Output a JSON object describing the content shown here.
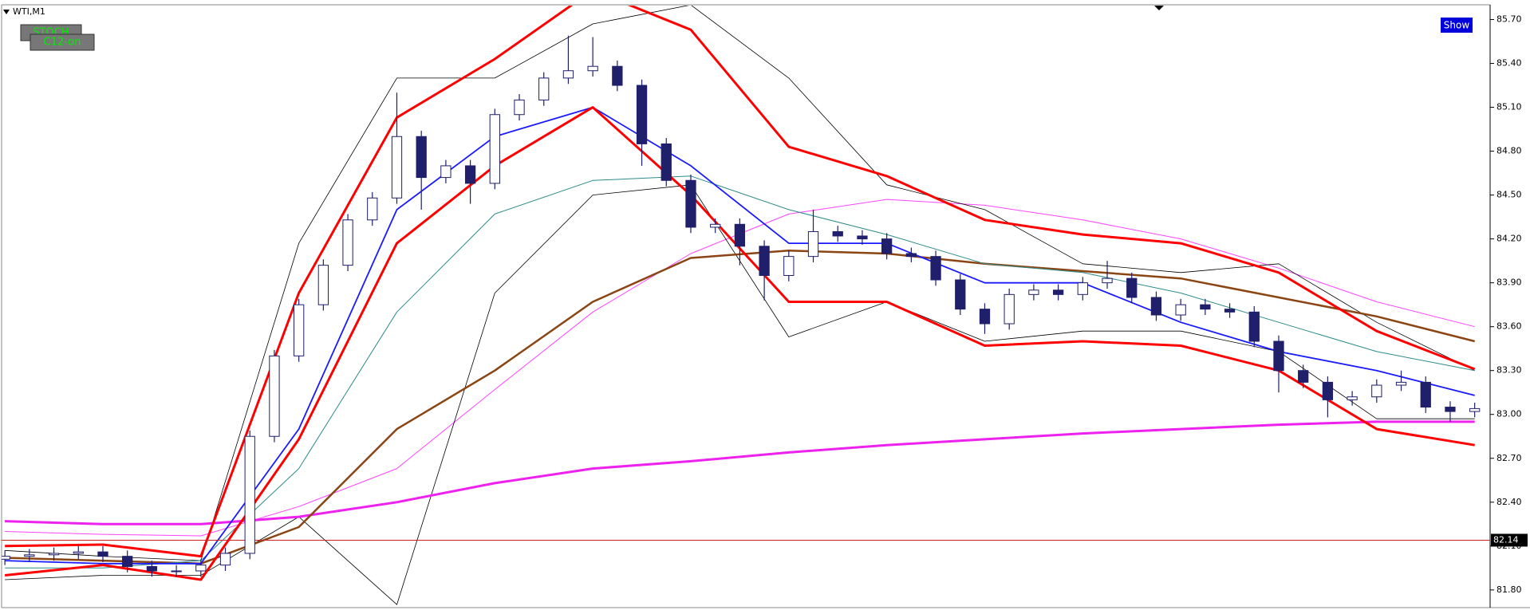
{
  "chart_data": {
    "type": "candlestick",
    "title": "WTI,M1",
    "indicator_labels": [
      "STOCH",
      "C12-on"
    ],
    "button": "Show",
    "current_price": 82.14,
    "ylim": [
      81.69,
      85.79
    ],
    "yticks": [
      {
        "value": 85.7,
        "label": "85.70"
      },
      {
        "value": 85.4,
        "label": "85.40"
      },
      {
        "value": 85.1,
        "label": "85.10"
      },
      {
        "value": 84.8,
        "label": "84.80"
      },
      {
        "value": 84.5,
        "label": "84.50"
      },
      {
        "value": 84.2,
        "label": "84.20"
      },
      {
        "value": 83.9,
        "label": "83.90"
      },
      {
        "value": 83.6,
        "label": "83.60"
      },
      {
        "value": 83.3,
        "label": "83.30"
      },
      {
        "value": 83.0,
        "label": "83.00"
      },
      {
        "value": 82.7,
        "label": "82.70"
      },
      {
        "value": 82.4,
        "label": "82.40"
      },
      {
        "value": 82.1,
        "label": "82.10"
      },
      {
        "value": 81.8,
        "label": "81.80"
      }
    ],
    "xlim": [
      -0.2,
      60.63
    ],
    "candle_color": "#1f1f6b",
    "open": [
      82.01,
      82.03,
      82.04,
      82.05,
      82.06,
      82.03,
      81.96,
      81.93,
      81.93,
      81.97,
      82.05,
      82.85,
      83.4,
      83.75,
      84.02,
      84.33,
      84.48,
      84.9,
      84.62,
      84.7,
      84.58,
      85.05,
      85.15,
      85.3,
      85.35,
      85.38,
      85.25,
      84.85,
      84.6,
      84.28,
      84.3,
      84.15,
      83.95,
      84.08,
      84.25,
      84.22,
      84.2,
      84.1,
      84.08,
      83.92,
      83.72,
      83.62,
      83.82,
      83.85,
      83.82,
      83.9,
      83.93,
      83.8,
      83.68,
      83.75,
      83.72,
      83.7,
      83.5,
      83.3,
      83.22,
      83.1,
      83.12,
      83.2,
      83.22,
      83.05,
      83.02
    ],
    "high": [
      82.07,
      82.08,
      82.09,
      82.1,
      82.1,
      82.07,
      82.0,
      81.97,
      82.01,
      82.09,
      82.89,
      83.44,
      83.79,
      84.06,
      84.37,
      84.52,
      85.2,
      84.94,
      84.74,
      84.74,
      85.09,
      85.19,
      85.34,
      85.59,
      85.58,
      85.42,
      85.29,
      84.89,
      84.64,
      84.34,
      84.34,
      84.19,
      84.12,
      84.4,
      84.29,
      84.26,
      84.24,
      84.14,
      84.12,
      83.96,
      83.76,
      83.86,
      83.89,
      83.89,
      83.94,
      84.05,
      83.97,
      83.84,
      83.79,
      83.79,
      83.76,
      83.74,
      83.54,
      83.34,
      83.26,
      83.16,
      83.24,
      83.3,
      83.26,
      83.09,
      83.08
    ],
    "low": [
      81.97,
      81.99,
      82.0,
      82.01,
      81.99,
      81.92,
      81.89,
      81.89,
      81.89,
      81.93,
      82.01,
      82.81,
      83.36,
      83.71,
      83.98,
      84.29,
      84.44,
      84.4,
      84.58,
      84.44,
      84.54,
      85.01,
      85.11,
      85.26,
      85.31,
      85.21,
      84.7,
      84.56,
      84.24,
      84.24,
      84.02,
      83.78,
      83.91,
      84.04,
      84.18,
      84.16,
      84.06,
      84.04,
      83.88,
      83.68,
      83.55,
      83.58,
      83.78,
      83.78,
      83.78,
      83.86,
      83.76,
      83.64,
      83.64,
      83.68,
      83.66,
      83.46,
      83.15,
      83.18,
      82.98,
      83.06,
      83.08,
      83.16,
      83.01,
      82.95,
      82.98
    ],
    "close": [
      82.03,
      82.04,
      82.05,
      82.06,
      82.03,
      81.96,
      81.93,
      81.93,
      81.97,
      82.05,
      82.85,
      83.4,
      83.75,
      84.02,
      84.33,
      84.48,
      84.9,
      84.62,
      84.7,
      84.58,
      85.05,
      85.15,
      85.3,
      85.35,
      85.38,
      85.25,
      84.85,
      84.6,
      84.28,
      84.3,
      84.15,
      83.95,
      84.08,
      84.25,
      84.22,
      84.2,
      84.1,
      84.08,
      83.92,
      83.72,
      83.62,
      83.82,
      83.85,
      83.82,
      83.9,
      83.93,
      83.8,
      83.68,
      83.75,
      83.72,
      83.7,
      83.5,
      83.3,
      83.22,
      83.1,
      83.12,
      83.2,
      83.22,
      83.05,
      83.02,
      83.04
    ],
    "line_x": [
      0,
      4,
      8,
      12,
      16,
      20,
      24,
      28,
      32,
      36,
      40,
      44,
      48,
      52,
      56,
      60
    ],
    "lines": [
      {
        "color": "#ff44ff",
        "width": 1,
        "values": [
          82.2,
          82.18,
          82.17,
          82.37,
          82.63,
          83.17,
          83.7,
          84.1,
          84.37,
          84.47,
          84.43,
          84.33,
          84.2,
          84.0,
          83.77,
          83.6
        ]
      },
      {
        "color": "#000000",
        "width": 0.8,
        "values": [
          82.07,
          82.03,
          82.0,
          84.17,
          85.3,
          85.3,
          85.67,
          85.8,
          85.3,
          84.57,
          84.4,
          84.03,
          83.97,
          84.03,
          83.63,
          83.3
        ]
      },
      {
        "color": "#000000",
        "width": 0.8,
        "values": [
          81.87,
          81.9,
          81.9,
          82.3,
          81.7,
          83.83,
          84.5,
          84.57,
          83.53,
          83.77,
          83.5,
          83.57,
          83.57,
          83.43,
          82.97,
          82.97
        ]
      },
      {
        "color": "#ee22ee",
        "width": 3,
        "values": [
          82.27,
          82.25,
          82.25,
          82.3,
          82.4,
          82.53,
          82.63,
          82.68,
          82.74,
          82.79,
          82.83,
          82.87,
          82.9,
          82.93,
          82.95,
          82.95
        ]
      },
      {
        "color": "#8b4513",
        "width": 2.5,
        "values": [
          82.02,
          82.0,
          81.98,
          82.23,
          82.9,
          83.3,
          83.77,
          84.07,
          84.12,
          84.1,
          84.03,
          83.98,
          83.93,
          83.8,
          83.67,
          83.5
        ]
      },
      {
        "color": "#2e8b8b",
        "width": 1,
        "values": [
          81.95,
          81.95,
          82.0,
          82.63,
          83.7,
          84.37,
          84.6,
          84.63,
          84.4,
          84.23,
          84.03,
          83.97,
          83.83,
          83.63,
          83.43,
          83.3
        ]
      },
      {
        "color": "#1a1aff",
        "width": 1.8,
        "values": [
          82.0,
          81.98,
          81.98,
          82.9,
          84.4,
          84.9,
          85.1,
          84.7,
          84.17,
          84.17,
          83.9,
          83.9,
          83.63,
          83.43,
          83.3,
          83.13
        ]
      },
      {
        "color": "#ff0000",
        "width": 3,
        "values": [
          82.1,
          82.11,
          82.03,
          83.83,
          85.03,
          85.43,
          85.9,
          85.63,
          84.83,
          84.63,
          84.33,
          84.23,
          84.17,
          83.97,
          83.57,
          83.31
        ]
      },
      {
        "color": "#ff0000",
        "width": 3,
        "values": [
          81.9,
          81.97,
          81.87,
          82.83,
          84.17,
          84.7,
          85.1,
          84.5,
          83.77,
          83.77,
          83.47,
          83.5,
          83.47,
          83.3,
          82.9,
          82.79
        ]
      }
    ]
  }
}
